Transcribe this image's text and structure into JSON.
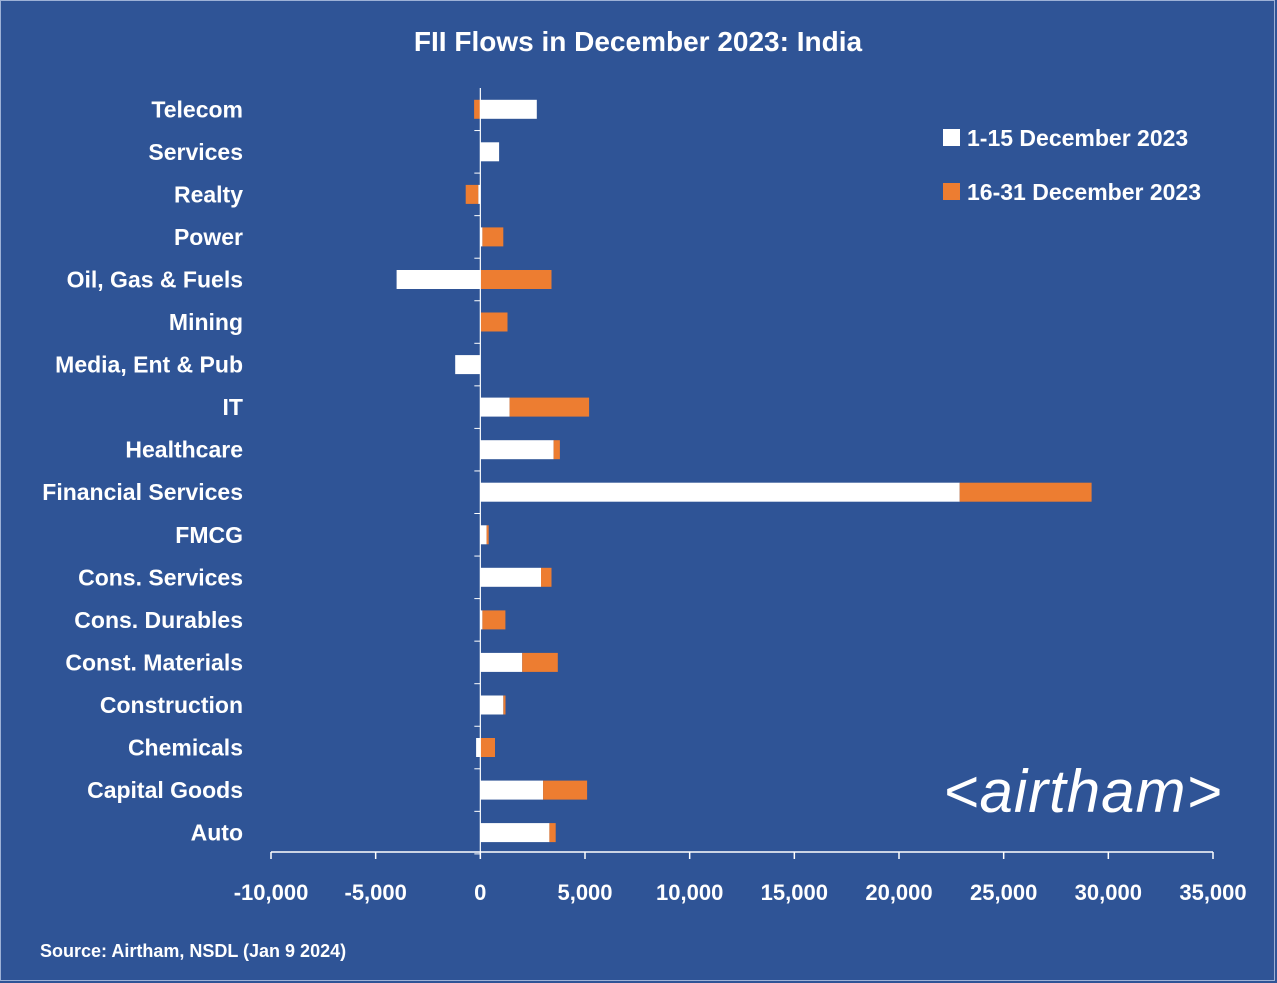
{
  "chart_data": {
    "type": "bar",
    "orientation": "horizontal",
    "stacked": true,
    "title": "FII Flows in December 2023: India",
    "categories": [
      "Telecom",
      "Services",
      "Realty",
      "Power",
      "Oil, Gas & Fuels",
      "Mining",
      "Media, Ent & Pub",
      "IT",
      "Healthcare",
      "Financial Services",
      "FMCG",
      "Cons. Services",
      "Cons. Durables",
      "Const. Materials",
      "Construction",
      "Chemicals",
      "Capital Goods",
      "Auto"
    ],
    "series": [
      {
        "name": "1-15 December 2023",
        "color": "#FFFFFF",
        "values": [
          2700,
          900,
          -100,
          100,
          -4000,
          0,
          -1200,
          1400,
          3500,
          22900,
          300,
          2900,
          100,
          2000,
          1100,
          -200,
          3000,
          3300
        ]
      },
      {
        "name": "16-31 December 2023",
        "color": "#ED7D31",
        "values": [
          -300,
          0,
          -600,
          1000,
          3400,
          1300,
          0,
          3800,
          300,
          6300,
          100,
          500,
          1100,
          1700,
          100,
          700,
          2100,
          300
        ]
      }
    ],
    "xlim": [
      -10000,
      35000
    ],
    "xticks": [
      -10000,
      -5000,
      0,
      5000,
      10000,
      15000,
      20000,
      25000,
      30000,
      35000
    ],
    "xtick_labels": [
      "-10,000",
      "-5,000",
      "0",
      "5,000",
      "10,000",
      "15,000",
      "20,000",
      "25,000",
      "30,000",
      "35,000"
    ],
    "xlabel": "",
    "ylabel": "",
    "grid": false,
    "legend_position": "top-right"
  },
  "footer": {
    "source": "Source: Airtham, NSDL (Jan 9 2024)",
    "brand": "<airtham>"
  },
  "colors": {
    "background": "#2F5496",
    "axis": "#FFFFFF",
    "text": "#FFFFFF"
  }
}
